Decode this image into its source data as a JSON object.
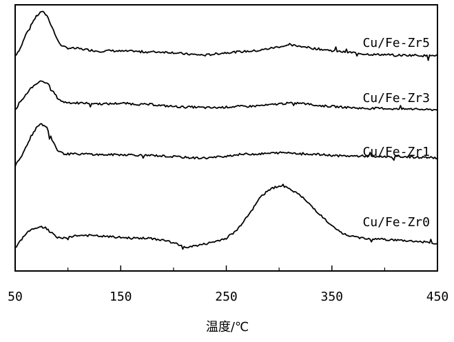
{
  "chart_data": {
    "type": "line",
    "title": "",
    "xlabel": "温度/℃",
    "ylabel": "",
    "xlim": [
      50,
      450
    ],
    "xticks": [
      "50",
      "150",
      "250",
      "350",
      "450"
    ],
    "xtick_values": [
      50,
      150,
      250,
      350,
      450
    ],
    "yticks": false,
    "grid": false,
    "legend": "inline labels at right end of each curve",
    "line_color": "#000000",
    "series": [
      {
        "name": "Cu/Fe-Zr5",
        "x": [
          50,
          55,
          60,
          65,
          70,
          75,
          80,
          85,
          90,
          95,
          100,
          110,
          120,
          130,
          140,
          150,
          160,
          170,
          180,
          190,
          200,
          210,
          220,
          230,
          240,
          250,
          260,
          270,
          280,
          290,
          300,
          310,
          320,
          330,
          340,
          350,
          360,
          370,
          380,
          390,
          400,
          410,
          420,
          430,
          440,
          450
        ],
        "y": [
          20,
          32,
          52,
          68,
          80,
          88,
          82,
          64,
          44,
          34,
          32,
          31,
          29,
          27,
          28,
          27,
          27,
          26,
          26,
          26,
          25,
          23,
          22,
          21,
          23,
          25,
          26,
          27,
          28,
          31,
          34,
          36,
          35,
          32,
          30,
          28,
          26,
          25,
          23,
          22,
          22,
          21,
          21,
          21,
          20,
          21
        ]
      },
      {
        "name": "Cu/Fe-Zr3",
        "x": [
          50,
          55,
          60,
          65,
          70,
          75,
          80,
          85,
          90,
          95,
          100,
          110,
          120,
          130,
          140,
          150,
          160,
          170,
          180,
          190,
          200,
          210,
          220,
          230,
          240,
          250,
          260,
          270,
          280,
          290,
          300,
          310,
          320,
          330,
          340,
          350,
          360,
          370,
          380,
          390,
          400,
          410,
          420,
          430,
          440,
          450
        ],
        "y": [
          22,
          33,
          45,
          55,
          62,
          66,
          63,
          52,
          40,
          34,
          33,
          32,
          32,
          31,
          31,
          32,
          31,
          30,
          30,
          28,
          27,
          26,
          26,
          25,
          25,
          26,
          27,
          27,
          28,
          29,
          31,
          32,
          32,
          30,
          28,
          27,
          26,
          25,
          24,
          24,
          24,
          23,
          23,
          23,
          22,
          22
        ]
      },
      {
        "name": "Cu/Fe-Zr1",
        "x": [
          50,
          55,
          60,
          65,
          70,
          75,
          80,
          85,
          90,
          95,
          100,
          110,
          120,
          130,
          140,
          150,
          160,
          170,
          180,
          190,
          200,
          210,
          220,
          230,
          240,
          250,
          260,
          270,
          280,
          290,
          300,
          310,
          320,
          330,
          340,
          350,
          360,
          370,
          380,
          390,
          400,
          410,
          420,
          430,
          440,
          450
        ],
        "y": [
          10,
          21,
          38,
          55,
          68,
          74,
          68,
          50,
          34,
          29,
          28,
          28,
          28,
          27,
          27,
          27,
          27,
          26,
          26,
          25,
          24,
          23,
          22,
          22,
          23,
          25,
          27,
          28,
          28,
          29,
          30,
          30,
          29,
          28,
          27,
          26,
          25,
          25,
          25,
          24,
          24,
          24,
          24,
          23,
          23,
          22
        ]
      },
      {
        "name": "Cu/Fe-Zr0",
        "x": [
          50,
          55,
          60,
          65,
          70,
          75,
          80,
          85,
          90,
          95,
          100,
          110,
          120,
          130,
          140,
          150,
          160,
          170,
          180,
          190,
          200,
          210,
          220,
          230,
          240,
          250,
          260,
          270,
          280,
          290,
          300,
          310,
          320,
          330,
          340,
          350,
          360,
          370,
          380,
          390,
          400,
          410,
          420,
          430,
          440,
          450
        ],
        "y": [
          10,
          22,
          33,
          39,
          42,
          43,
          40,
          33,
          27,
          26,
          28,
          30,
          30,
          29,
          28,
          27,
          26,
          26,
          25,
          23,
          19,
          12,
          14,
          17,
          21,
          26,
          38,
          60,
          84,
          100,
          106,
          102,
          91,
          76,
          60,
          44,
          33,
          28,
          26,
          25,
          24,
          23,
          22,
          21,
          20,
          17
        ]
      }
    ]
  }
}
